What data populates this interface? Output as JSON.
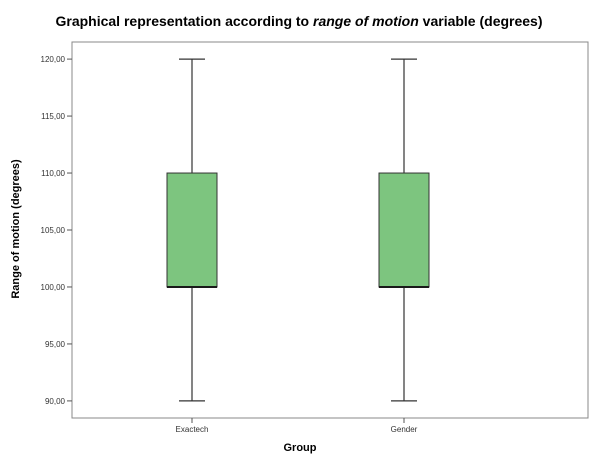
{
  "title_parts": {
    "before": "Graphical representation according to ",
    "italic": "range of motion",
    "after": " variable (degrees)"
  },
  "chart_data": {
    "type": "boxplot",
    "title": "Graphical representation according to range of motion variable (degrees)",
    "xlabel": "Group",
    "ylabel": "Range of motion (degrees)",
    "ylim": [
      88.5,
      121.5
    ],
    "yticks": [
      90,
      95,
      100,
      105,
      110,
      115,
      120
    ],
    "ytick_labels": [
      "90,00",
      "95,00",
      "100,00",
      "105,00",
      "110,00",
      "115,00",
      "120,00"
    ],
    "categories": [
      "Exactech",
      "Gender"
    ],
    "boxes": [
      {
        "name": "Exactech",
        "min": 90,
        "q1": 100,
        "median": 100,
        "q3": 110,
        "max": 120
      },
      {
        "name": "Gender",
        "min": 90,
        "q1": 100,
        "median": 100,
        "q3": 110,
        "max": 120
      }
    ],
    "grid": false,
    "colors": {
      "box_fill": "#7dc57f",
      "box_stroke": "#333333",
      "median": "#1a1a1a",
      "whisker": "#333333",
      "frame": "#888888"
    }
  }
}
